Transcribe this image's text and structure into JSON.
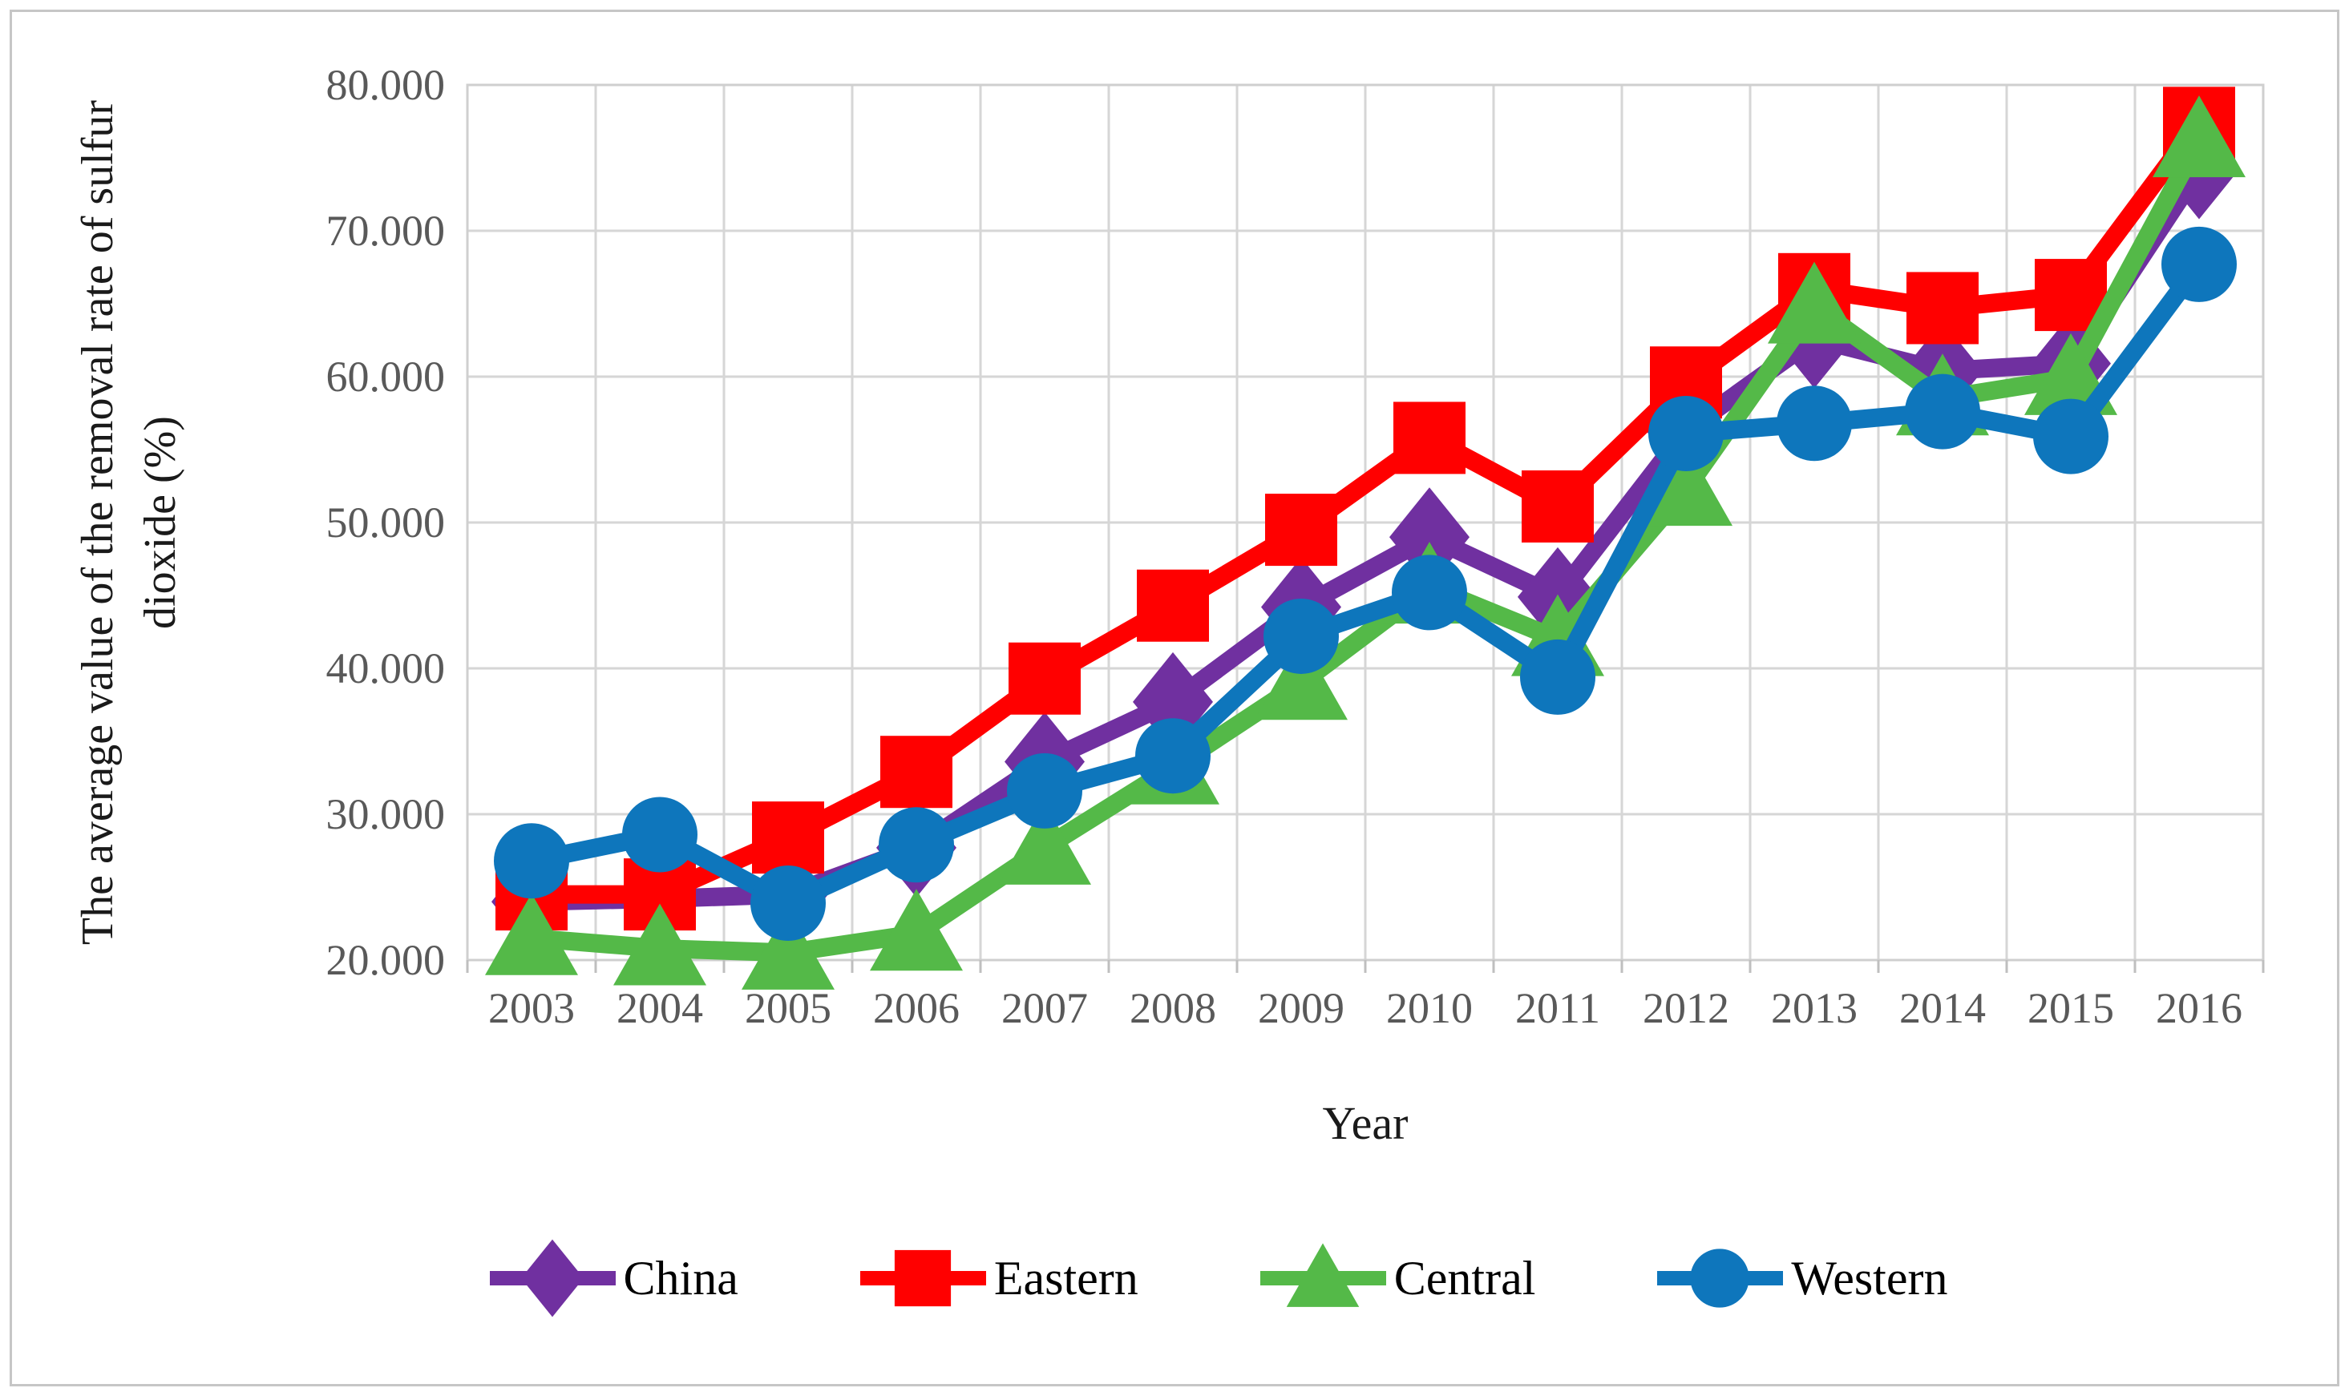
{
  "figure": {
    "kind": "published-paper line chart figure"
  },
  "colors": {
    "grid": "#d6d6d6",
    "plot_border": "#cfcfcf",
    "tick_mark": "#bfbfbf",
    "axis_tick_text": "#595959",
    "axis_title_text": "#1a1a1a",
    "legend_text": "#000000",
    "background": "#ffffff"
  },
  "chart_data": {
    "type": "line",
    "title": "",
    "xlabel": "Year",
    "ylabel": "The average value of the removal rate of sulfur dioxide (%)",
    "ylabel_lines": [
      "The average value of the removal rate of sulfur",
      "dioxide (%)"
    ],
    "categories": [
      "2003",
      "2004",
      "2005",
      "2006",
      "2007",
      "2008",
      "2009",
      "2010",
      "2011",
      "2012",
      "2013",
      "2014",
      "2015",
      "2016"
    ],
    "ylim": [
      20,
      80
    ],
    "ytick_step": 10,
    "ytick_labels": [
      "20.000",
      "30.000",
      "40.000",
      "50.000",
      "60.000",
      "70.000",
      "80.000"
    ],
    "grid": true,
    "legend_position": "bottom",
    "series": [
      {
        "name": "China",
        "color": "#7030A0",
        "marker": "diamond",
        "values": [
          24.0,
          24.2,
          24.5,
          27.7,
          33.6,
          37.7,
          44.2,
          49.0,
          44.9,
          56.3,
          62.6,
          60.4,
          60.9,
          74.2
        ]
      },
      {
        "name": "Eastern",
        "color": "#FF0000",
        "marker": "square",
        "values": [
          24.5,
          24.5,
          28.4,
          32.9,
          39.3,
          44.3,
          49.5,
          55.8,
          51.1,
          59.6,
          66.0,
          64.7,
          65.6,
          77.4
        ]
      },
      {
        "name": "Central",
        "color": "#54B948",
        "marker": "triangle",
        "values": [
          21.5,
          20.8,
          20.5,
          21.8,
          27.7,
          33.2,
          39.0,
          45.6,
          42.0,
          52.3,
          64.8,
          58.5,
          59.9,
          76.2
        ]
      },
      {
        "name": "Western",
        "color": "#0E76BC",
        "marker": "circle",
        "values": [
          26.8,
          28.6,
          23.9,
          27.9,
          31.6,
          34.0,
          42.2,
          45.2,
          39.4,
          56.1,
          56.8,
          57.6,
          55.9,
          67.7
        ]
      }
    ]
  }
}
